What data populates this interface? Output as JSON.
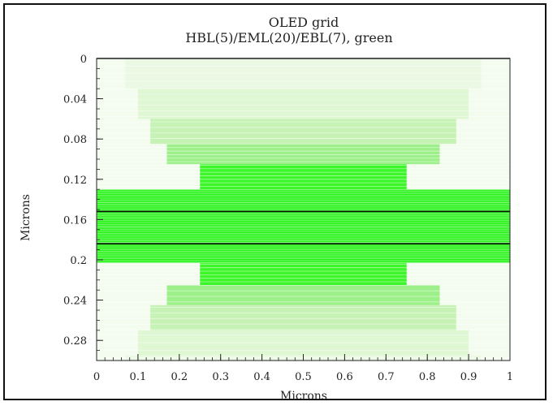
{
  "chart_data": {
    "type": "heatmap",
    "title": "OLED grid",
    "subtitle": "HBL(5)/EML(20)/EBL(7), green",
    "xlabel": "Microns",
    "ylabel": "Microns",
    "xlim": [
      0,
      1
    ],
    "ylim": [
      0,
      0.3
    ],
    "y_inverted": true,
    "x_ticks": [
      "0",
      "0.1",
      "0.2",
      "0.3",
      "0.4",
      "0.5",
      "0.6",
      "0.7",
      "0.8",
      "0.9",
      "1"
    ],
    "y_ticks": [
      "0",
      "0.04",
      "0.08",
      "0.12",
      "0.16",
      "0.2",
      "0.24",
      "0.28"
    ],
    "grid": false,
    "interface_lines_y": [
      0,
      0.152,
      0.184
    ],
    "mesh_regions": [
      {
        "y0": 0.0,
        "y1": 0.03,
        "x0": 0.07,
        "x1": 0.93,
        "color": "#ebf9e4"
      },
      {
        "y0": 0.03,
        "y1": 0.06,
        "x0": 0.1,
        "x1": 0.9,
        "color": "#dff7d3"
      },
      {
        "y0": 0.06,
        "y1": 0.085,
        "x0": 0.13,
        "x1": 0.87,
        "color": "#c7f2b5"
      },
      {
        "y0": 0.085,
        "y1": 0.105,
        "x0": 0.17,
        "x1": 0.83,
        "color": "#9df089"
      },
      {
        "y0": 0.105,
        "y1": 0.13,
        "x0": 0.25,
        "x1": 0.75,
        "color": "#3cf62a"
      },
      {
        "y0": 0.13,
        "y1": 0.203,
        "x0": 0.0,
        "x1": 1.0,
        "color": "#1ef20e"
      },
      {
        "y0": 0.203,
        "y1": 0.225,
        "x0": 0.25,
        "x1": 0.75,
        "color": "#3cf62a"
      },
      {
        "y0": 0.225,
        "y1": 0.245,
        "x0": 0.17,
        "x1": 0.83,
        "color": "#9df089"
      },
      {
        "y0": 0.245,
        "y1": 0.27,
        "x0": 0.13,
        "x1": 0.87,
        "color": "#c7f2b5"
      },
      {
        "y0": 0.27,
        "y1": 0.295,
        "x0": 0.1,
        "x1": 0.9,
        "color": "#dff7d3"
      },
      {
        "y0": 0.295,
        "y1": 0.3,
        "x0": 0.07,
        "x1": 0.93,
        "color": "#ebf9e4"
      }
    ],
    "background_color": "#f4fcf0",
    "colors": {
      "line": "#1e6b1e",
      "interface": "#111111",
      "text": "#222222"
    }
  }
}
